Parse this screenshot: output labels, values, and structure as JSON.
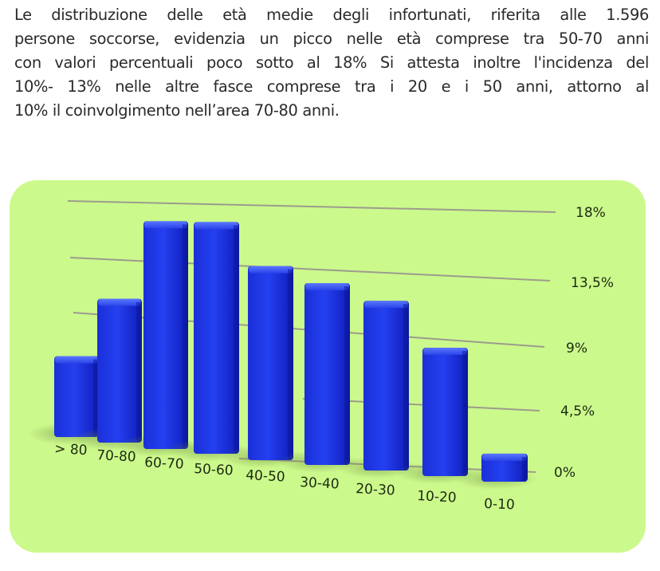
{
  "paragraph": {
    "lines": [
      "Le distribuzione delle età medie degli infortunati, riferita alle 1.596",
      "persone soccorse, evidenzia un picco nelle età comprese tra 50-70 anni",
      "con valori percentuali poco sotto al 18%  Si attesta inoltre l'incidenza del",
      "10%- 13% nelle  altre  fasce comprese tra i 20 e i 50 anni, attorno al",
      "10% il coinvolgimento nell’area 70-80 anni."
    ]
  },
  "colors": {
    "panel_bg": "#ccf98c",
    "bar": "#1a2fe0",
    "bar_dark": "#0c18a8",
    "bar_top": "#3a58f0",
    "gridline": "#9a9a8a",
    "text": "#1c2a12"
  },
  "chart_data": {
    "type": "bar",
    "style": "3d-perspective",
    "title": "",
    "xlabel": "",
    "ylabel": "",
    "categories": [
      "> 80",
      "70-80",
      "60-70",
      "50-60",
      "40-50",
      "30-40",
      "20-30",
      "10-20",
      "0-10"
    ],
    "values": [
      6.0,
      10.3,
      16.9,
      16.8,
      13.3,
      12.6,
      11.5,
      8.7,
      1.9
    ],
    "unit": "%",
    "yticks": [
      "0%",
      "4,5%",
      "9%",
      "13,5%",
      "18%"
    ],
    "ytick_values": [
      0,
      4.5,
      9,
      13.5,
      18
    ],
    "ylim": [
      0,
      18
    ],
    "grid": true,
    "yaxis_position": "right"
  }
}
